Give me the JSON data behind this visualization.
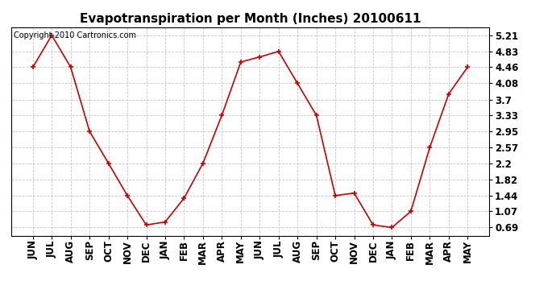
{
  "title": "Evapotranspiration per Month (Inches) 20100611",
  "copyright": "Copyright 2010 Cartronics.com",
  "x_labels": [
    "JUN",
    "JUL",
    "AUG",
    "SEP",
    "OCT",
    "NOV",
    "DEC",
    "JAN",
    "FEB",
    "MAR",
    "APR",
    "MAY",
    "JUN",
    "JUL",
    "AUG",
    "SEP",
    "OCT",
    "NOV",
    "DEC",
    "JAN",
    "FEB",
    "MAR",
    "APR",
    "MAY"
  ],
  "y_values": [
    4.46,
    5.21,
    4.46,
    2.95,
    2.2,
    1.44,
    0.75,
    0.82,
    1.38,
    2.2,
    3.33,
    4.58,
    4.7,
    4.83,
    4.08,
    3.33,
    1.44,
    1.5,
    0.75,
    0.69,
    1.07,
    2.57,
    3.83,
    4.46
  ],
  "y_ticks": [
    0.69,
    1.07,
    1.44,
    1.82,
    2.2,
    2.57,
    2.95,
    3.33,
    3.7,
    4.08,
    4.46,
    4.83,
    5.21
  ],
  "line_color": "#cc0000",
  "marker": "+",
  "marker_color": "#cc0000",
  "background_color": "#ffffff",
  "grid_color": "#c8c8c8",
  "title_fontsize": 11,
  "copyright_fontsize": 7,
  "tick_fontsize": 8.5,
  "ylim": [
    0.5,
    5.4
  ],
  "figwidth": 6.9,
  "figheight": 3.75,
  "dpi": 100
}
